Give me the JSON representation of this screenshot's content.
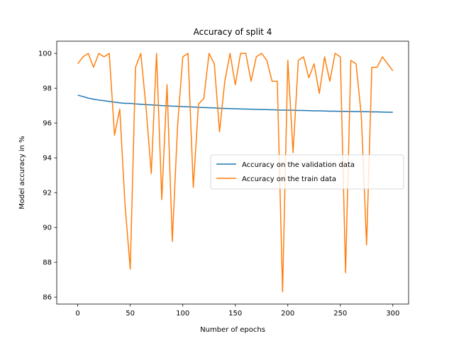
{
  "chart_data": {
    "type": "line",
    "title": "Accuracy of split 4",
    "xlabel": "Number of epochs",
    "ylabel": "Model accuracy in %",
    "xlim": [
      -20,
      315
    ],
    "ylim": [
      85.6,
      100.7
    ],
    "xticks": [
      0,
      50,
      100,
      150,
      200,
      250,
      300
    ],
    "yticks": [
      86,
      88,
      90,
      92,
      94,
      96,
      98,
      100
    ],
    "grid": false,
    "legend_position": "center-right",
    "series": [
      {
        "name": "Accuracy on the validation data",
        "color": "#1f77b4",
        "x": [
          0,
          5,
          10,
          15,
          20,
          25,
          30,
          35,
          40,
          45,
          50,
          55,
          60,
          65,
          70,
          75,
          80,
          85,
          90,
          95,
          100,
          105,
          110,
          115,
          120,
          125,
          130,
          135,
          140,
          145,
          150,
          155,
          160,
          165,
          170,
          175,
          180,
          185,
          190,
          195,
          200,
          205,
          210,
          215,
          220,
          225,
          230,
          235,
          240,
          245,
          250,
          255,
          260,
          265,
          270,
          275,
          280,
          285,
          290,
          295,
          300
        ],
        "y": [
          97.6,
          97.52,
          97.43,
          97.37,
          97.32,
          97.28,
          97.24,
          97.2,
          97.16,
          97.13,
          97.13,
          97.1,
          97.08,
          97.06,
          97.04,
          97.02,
          97.0,
          96.99,
          96.97,
          96.96,
          96.94,
          96.93,
          96.92,
          96.9,
          96.89,
          96.88,
          96.87,
          96.85,
          96.84,
          96.83,
          96.82,
          96.81,
          96.8,
          96.79,
          96.78,
          96.77,
          96.77,
          96.76,
          96.75,
          96.74,
          96.74,
          96.73,
          96.72,
          96.72,
          96.71,
          96.7,
          96.7,
          96.69,
          96.68,
          96.68,
          96.67,
          96.67,
          96.66,
          96.66,
          96.65,
          96.65,
          96.64,
          96.64,
          96.63,
          96.62,
          96.62
        ]
      },
      {
        "name": "Accuracy on the train data",
        "color": "#ff7f0e",
        "x": [
          0,
          5,
          10,
          15,
          20,
          25,
          30,
          35,
          40,
          45,
          50,
          55,
          60,
          65,
          70,
          75,
          80,
          85,
          90,
          95,
          100,
          105,
          110,
          115,
          120,
          125,
          130,
          135,
          140,
          145,
          150,
          155,
          160,
          165,
          170,
          175,
          180,
          185,
          190,
          195,
          200,
          205,
          210,
          215,
          220,
          225,
          230,
          235,
          240,
          245,
          250,
          255,
          260,
          265,
          270,
          275,
          280,
          285,
          290,
          295,
          300
        ],
        "y": [
          99.4,
          99.8,
          100.0,
          99.2,
          100.0,
          99.8,
          100.0,
          95.3,
          96.8,
          91.3,
          87.6,
          99.2,
          100.0,
          96.9,
          93.1,
          100.0,
          91.6,
          98.2,
          89.2,
          95.8,
          99.8,
          100.0,
          92.3,
          97.1,
          97.4,
          100.0,
          99.4,
          95.5,
          98.4,
          100.0,
          98.2,
          100.0,
          100.0,
          98.4,
          99.8,
          100.0,
          99.6,
          98.4,
          98.4,
          86.3,
          99.6,
          94.3,
          99.6,
          99.8,
          98.6,
          99.4,
          97.7,
          99.8,
          98.4,
          100.0,
          99.8,
          87.4,
          99.6,
          99.4,
          96.4,
          89.0,
          99.2,
          99.2,
          99.8,
          99.4,
          99.0
        ]
      }
    ]
  }
}
